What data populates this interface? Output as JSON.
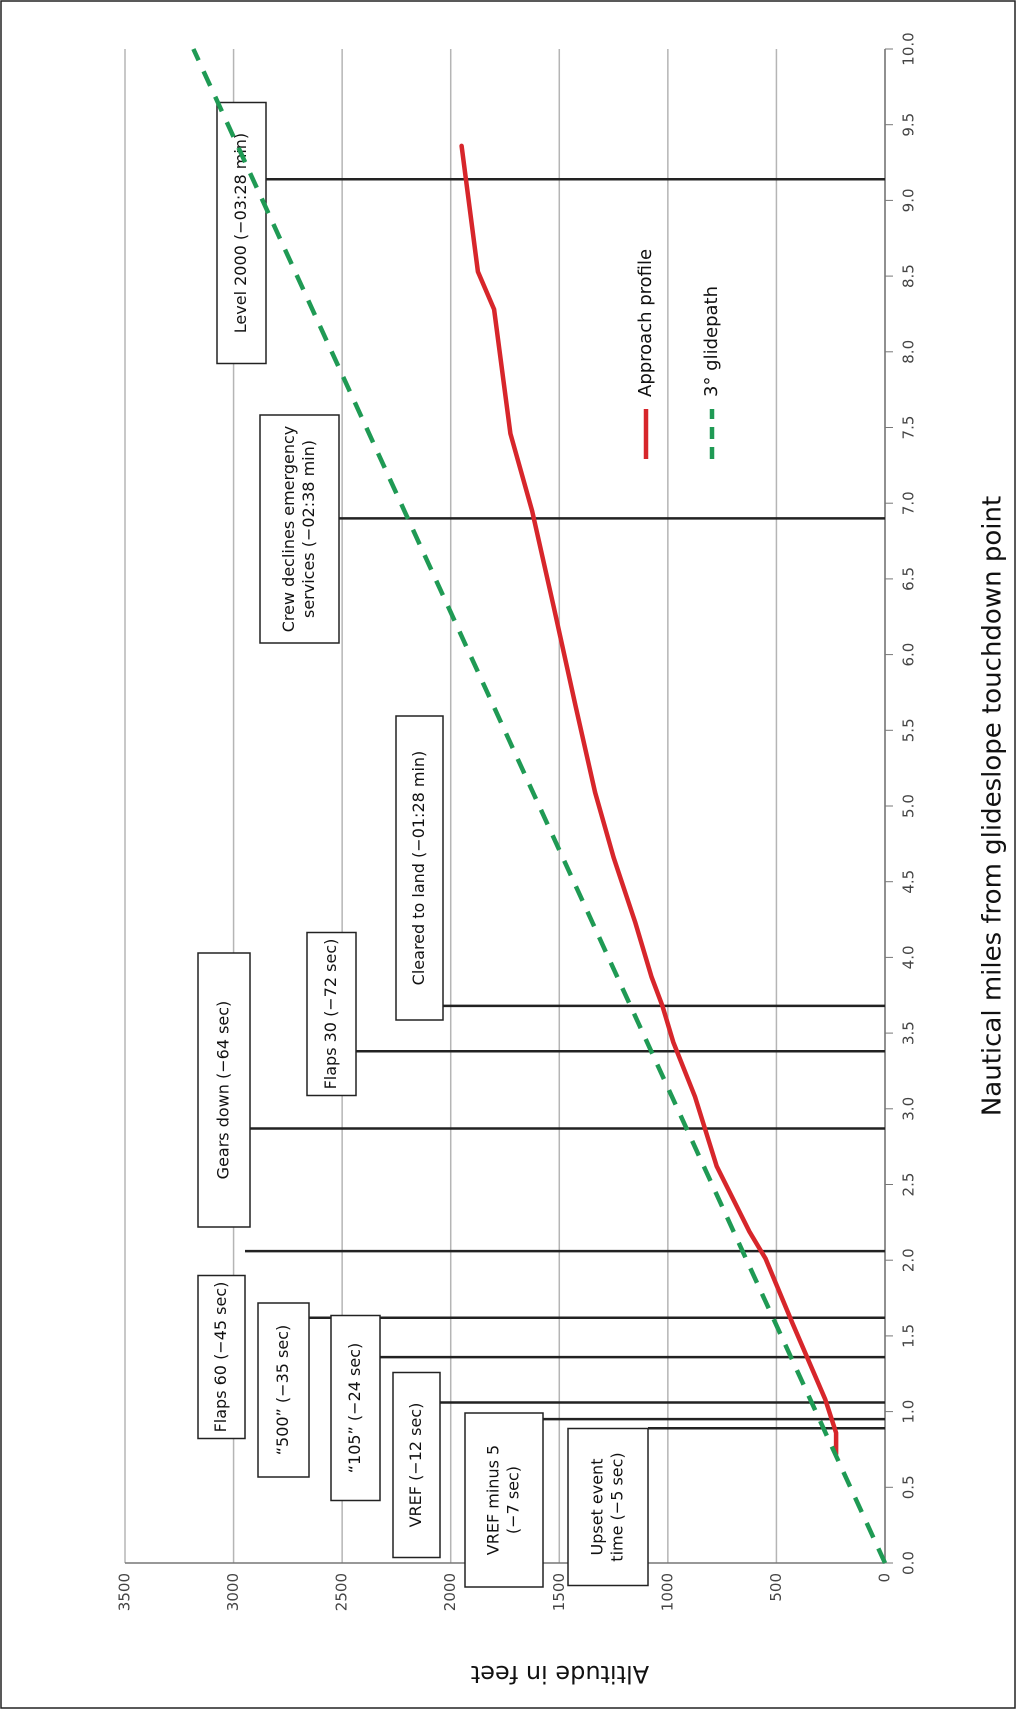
{
  "chart_data": {
    "type": "line",
    "xlabel": "Nautical miles from glideslope touchdown point",
    "ylabel": "Altitude in feet",
    "xlim": [
      0,
      10
    ],
    "ylim": [
      0,
      3500
    ],
    "xticks": [
      {
        "value": 0,
        "label": "0.0"
      },
      0.5,
      {
        "value": 1,
        "label": "1.0"
      },
      1.5,
      {
        "value": 2,
        "label": "2.0"
      },
      2.5,
      {
        "value": 3,
        "label": "3.0"
      },
      3.5,
      {
        "value": 4,
        "label": "4.0"
      },
      4.5,
      {
        "value": 5,
        "label": "5.0"
      },
      5.5,
      {
        "value": 6,
        "label": "6.0"
      },
      6.5,
      {
        "value": 7,
        "label": "7.0"
      },
      7.5,
      {
        "value": 8,
        "label": "8.0"
      },
      8.5,
      {
        "value": 9,
        "label": "9.0"
      },
      9.5,
      {
        "value": 10,
        "label": "10.0"
      }
    ],
    "yticks": [
      0,
      500,
      1000,
      1500,
      2000,
      2500,
      3000,
      3500
    ],
    "grid": true,
    "series": [
      {
        "name": "Approach profile",
        "color": "#d7262b",
        "style": "solid",
        "x": [
          0.72,
          0.86,
          1.08,
          1.58,
          2.01,
          2.19,
          2.62,
          3.08,
          3.44,
          3.68,
          3.87,
          4.23,
          4.66,
          5.09,
          5.66,
          6.31,
          6.95,
          7.46,
          8.28,
          8.53,
          9.36
        ],
        "values": [
          225,
          225,
          275,
          425,
          550,
          625,
          775,
          875,
          975,
          1025,
          1075,
          1150,
          1250,
          1335,
          1425,
          1525,
          1625,
          1725,
          1800,
          1875,
          1950
        ]
      },
      {
        "name": "3° glidepath",
        "color": "#1f9a54",
        "style": "dashed",
        "x": [
          0,
          10
        ],
        "values": [
          0,
          3185
        ]
      }
    ],
    "events": [
      {
        "label": [
          "Level 2000 (−03:28 min)"
        ],
        "x": 9.14
      },
      {
        "label": [
          "Crew declines emergency",
          "services (−02:38 min)"
        ],
        "x": 6.9
      },
      {
        "label": [
          "Cleared to land (−01:28 min)"
        ],
        "x": 3.68
      },
      {
        "label": [
          "Flaps 30 (−72 sec)"
        ],
        "x": 3.38
      },
      {
        "label": [
          "Gears down (−64 sec)"
        ],
        "x": 2.87
      },
      {
        "label": [
          "Flaps 60 (−45 sec)"
        ],
        "x": 2.06
      },
      {
        "label": [
          "“500” (−35 sec)"
        ],
        "x": 1.62
      },
      {
        "label": [
          "“105” (−24 sec)"
        ],
        "x": 1.36
      },
      {
        "label": [
          "VREF (−12 sec)"
        ],
        "x": 1.06
      },
      {
        "label": [
          "VREF minus 5",
          "(−7 sec)"
        ],
        "x": 0.95
      },
      {
        "label": [
          "Upset event",
          "time (−5 sec)"
        ],
        "x": 0.89
      }
    ]
  }
}
